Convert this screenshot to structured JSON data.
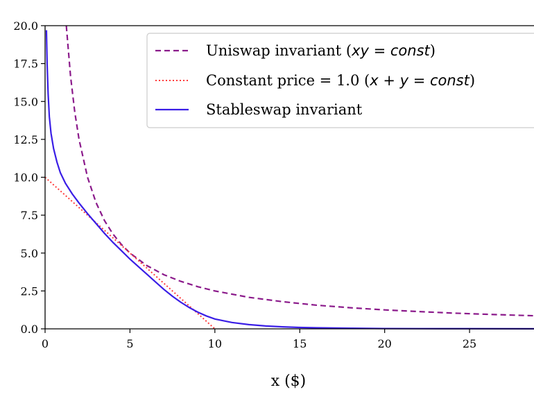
{
  "chart_data": {
    "type": "line",
    "title": "",
    "xlabel": "x ($)",
    "ylabel": "",
    "xlim": [
      0,
      29
    ],
    "ylim": [
      0,
      20
    ],
    "xticks": [
      0,
      5,
      10,
      15,
      20,
      25
    ],
    "yticks": [
      0.0,
      2.5,
      5.0,
      7.5,
      10.0,
      12.5,
      15.0,
      17.5,
      20.0
    ],
    "ytick_labels": [
      "0.0",
      "2.5",
      "5.0",
      "7.5",
      "10.0",
      "12.5",
      "15.0",
      "17.5",
      "20.0"
    ],
    "grid": false,
    "legend_position": "top-right",
    "series": [
      {
        "name": "Uniswap invariant (xy = const)",
        "name_plain": "Uniswap invariant (",
        "name_math": "xy = const",
        "name_close": ")",
        "style": "dashed",
        "color": "#8b1a8b",
        "x": [
          1.25,
          1.5,
          1.75,
          2,
          2.5,
          3,
          3.5,
          4,
          4.5,
          5,
          6,
          7,
          8,
          9,
          10,
          12,
          14,
          16,
          18,
          20,
          22,
          24,
          26,
          28,
          29
        ],
        "y": [
          20,
          16.67,
          14.29,
          12.5,
          10,
          8.33,
          7.14,
          6.25,
          5.56,
          5,
          4.17,
          3.57,
          3.13,
          2.78,
          2.5,
          2.08,
          1.79,
          1.56,
          1.39,
          1.25,
          1.14,
          1.04,
          0.96,
          0.89,
          0.86
        ]
      },
      {
        "name": "Constant price = 1.0 (x + y = const)",
        "name_plain": "Constant price = 1.0 (",
        "name_math": "x + y = const",
        "name_close": ")",
        "style": "dotted",
        "color": "#ff3b3b",
        "x": [
          0,
          10
        ],
        "y": [
          10,
          0
        ]
      },
      {
        "name": "Stableswap invariant",
        "style": "solid",
        "color": "#3a1ee6",
        "x": [
          0.08,
          0.12,
          0.18,
          0.25,
          0.35,
          0.5,
          0.7,
          0.9,
          1.2,
          1.6,
          2.0,
          2.5,
          3.0,
          3.5,
          4.0,
          4.5,
          5.0,
          5.5,
          6.0,
          6.5,
          7.0,
          7.5,
          8.0,
          8.5,
          9.0,
          9.5,
          10.0,
          11,
          12,
          13,
          14,
          15,
          16,
          18,
          20,
          22,
          25,
          29
        ],
        "y": [
          19.7,
          17.5,
          15.5,
          14.0,
          12.9,
          11.9,
          11.0,
          10.3,
          9.6,
          8.9,
          8.3,
          7.6,
          6.95,
          6.3,
          5.7,
          5.15,
          4.6,
          4.1,
          3.6,
          3.1,
          2.6,
          2.15,
          1.75,
          1.4,
          1.1,
          0.85,
          0.65,
          0.42,
          0.28,
          0.19,
          0.13,
          0.09,
          0.07,
          0.04,
          0.02,
          0.015,
          0.01,
          0.005
        ]
      }
    ]
  }
}
